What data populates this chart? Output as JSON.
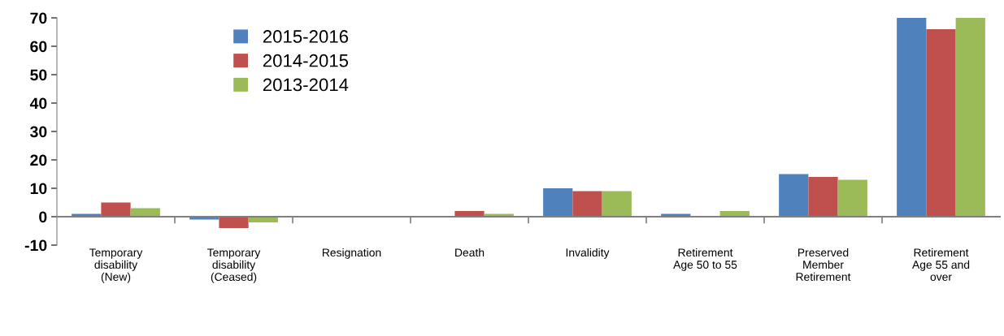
{
  "chart_data": {
    "type": "bar",
    "categories": [
      "Temporary\ndisability\n(New)",
      "Temporary\ndisability\n(Ceased)",
      "Resignation",
      "Death",
      "Invalidity",
      "Retirement\nAge 50 to 55",
      "Preserved\nMember\nRetirement",
      "Retirement\nAge 55 and\nover"
    ],
    "series": [
      {
        "name": "2015-2016",
        "color": "#4f81bd",
        "values": [
          1,
          -1,
          0,
          0,
          10,
          1,
          15,
          70
        ]
      },
      {
        "name": "2014-2015",
        "color": "#c0504d",
        "values": [
          5,
          -4,
          0,
          2,
          9,
          0,
          14,
          66
        ]
      },
      {
        "name": "2013-2014",
        "color": "#9bbb59",
        "values": [
          3,
          -2,
          0,
          1,
          9,
          2,
          13,
          70
        ]
      }
    ],
    "ylim": [
      -10,
      70
    ],
    "yticks": [
      -10,
      0,
      10,
      20,
      30,
      40,
      50,
      60,
      70
    ],
    "legend": "top left"
  }
}
